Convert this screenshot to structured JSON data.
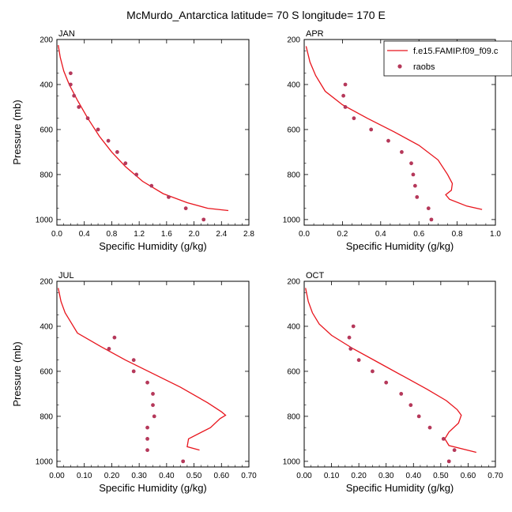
{
  "title": "McMurdo_Antarctica  latitude= 70 S longitude= 170 E",
  "legend": {
    "model_label": "f.e15.FAMIP.f09_f09.c",
    "obs_label": "raobs"
  },
  "colors": {
    "model": "#e8141c",
    "obs": "#b5385a"
  },
  "chart_data": [
    {
      "type": "line",
      "panel": "JAN",
      "xlabel": "Specific Humidity (g/kg)",
      "ylabel": "Pressure (mb)",
      "xlim": [
        0,
        2.8
      ],
      "ylim": [
        1025,
        200
      ],
      "xticks": [
        0.0,
        0.4,
        0.8,
        1.2,
        1.6,
        2.0,
        2.4,
        2.8
      ],
      "xtick_labels": [
        "0.0",
        "0.4",
        "0.8",
        "1.2",
        "1.6",
        "2.0",
        "2.4",
        "2.8"
      ],
      "yticks": [
        200,
        400,
        600,
        800,
        1000
      ],
      "ytick_labels": [
        "200",
        "400",
        "600",
        "800",
        "1000"
      ],
      "model": {
        "x": [
          0.02,
          0.05,
          0.1,
          0.18,
          0.3,
          0.45,
          0.62,
          0.8,
          1.0,
          1.25,
          1.55,
          1.9,
          2.2,
          2.5
        ],
        "y": [
          225,
          280,
          340,
          400,
          470,
          550,
          630,
          700,
          765,
          830,
          885,
          925,
          950,
          960
        ]
      },
      "obs": {
        "x": [
          0.2,
          0.2,
          0.25,
          0.32,
          0.45,
          0.6,
          0.75,
          0.88,
          1.0,
          1.16,
          1.38,
          1.63,
          1.88,
          2.14
        ],
        "y": [
          350,
          400,
          450,
          500,
          550,
          600,
          650,
          700,
          750,
          800,
          850,
          900,
          950,
          1000
        ]
      }
    },
    {
      "type": "line",
      "panel": "APR",
      "xlabel": "Specific Humidity (g/kg)",
      "ylabel": "",
      "xlim": [
        0,
        1.0
      ],
      "ylim": [
        1025,
        200
      ],
      "xticks": [
        0.0,
        0.2,
        0.4,
        0.6,
        0.8,
        1.0
      ],
      "xtick_labels": [
        "0.0",
        "0.2",
        "0.4",
        "0.6",
        "0.8",
        "1.0"
      ],
      "yticks": [
        200,
        400,
        600,
        800,
        1000
      ],
      "ytick_labels": [
        "200",
        "400",
        "600",
        "800",
        "1000"
      ],
      "model": {
        "x": [
          0.01,
          0.03,
          0.06,
          0.11,
          0.2,
          0.33,
          0.47,
          0.6,
          0.7,
          0.75,
          0.775,
          0.77,
          0.74,
          0.76,
          0.85,
          0.93
        ],
        "y": [
          230,
          300,
          360,
          430,
          490,
          550,
          610,
          670,
          735,
          800,
          840,
          870,
          890,
          910,
          940,
          955
        ]
      },
      "obs": {
        "x": [
          0.215,
          0.205,
          0.215,
          0.26,
          0.35,
          0.44,
          0.51,
          0.56,
          0.57,
          0.58,
          0.59,
          0.65,
          0.665
        ],
        "y": [
          400,
          450,
          500,
          550,
          600,
          650,
          700,
          750,
          800,
          850,
          900,
          950,
          1000
        ]
      }
    },
    {
      "type": "line",
      "panel": "JUL",
      "xlabel": "Specific Humidity (g/kg)",
      "ylabel": "Pressure (mb)",
      "xlim": [
        0,
        0.7
      ],
      "ylim": [
        1025,
        200
      ],
      "xticks": [
        0.0,
        0.1,
        0.2,
        0.3,
        0.4,
        0.5,
        0.6,
        0.7
      ],
      "xtick_labels": [
        "0.00",
        "0.10",
        "0.20",
        "0.30",
        "0.40",
        "0.50",
        "0.60",
        "0.70"
      ],
      "yticks": [
        200,
        400,
        600,
        800,
        1000
      ],
      "ytick_labels": [
        "200",
        "400",
        "600",
        "800",
        "1000"
      ],
      "model": {
        "x": [
          0.005,
          0.015,
          0.03,
          0.05,
          0.075,
          0.16,
          0.25,
          0.35,
          0.45,
          0.55,
          0.6,
          0.615,
          0.595,
          0.56,
          0.48,
          0.475,
          0.52
        ],
        "y": [
          230,
          290,
          340,
          380,
          430,
          490,
          550,
          610,
          670,
          740,
          780,
          795,
          810,
          850,
          900,
          935,
          950
        ]
      },
      "obs": {
        "x": [
          0.21,
          0.19,
          0.28,
          0.28,
          0.33,
          0.35,
          0.35,
          0.355,
          0.33,
          0.33,
          0.33,
          0.46
        ],
        "y": [
          450,
          500,
          550,
          600,
          650,
          700,
          750,
          800,
          850,
          900,
          950,
          1000
        ]
      }
    },
    {
      "type": "line",
      "panel": "OCT",
      "xlabel": "Specific Humidity (g/kg)",
      "ylabel": "",
      "xlim": [
        0,
        0.7
      ],
      "ylim": [
        1025,
        200
      ],
      "xticks": [
        0.0,
        0.1,
        0.2,
        0.3,
        0.4,
        0.5,
        0.6,
        0.7
      ],
      "xtick_labels": [
        "0.00",
        "0.10",
        "0.20",
        "0.30",
        "0.40",
        "0.50",
        "0.60",
        "0.70"
      ],
      "yticks": [
        200,
        400,
        600,
        800,
        1000
      ],
      "ytick_labels": [
        "200",
        "400",
        "600",
        "800",
        "1000"
      ],
      "model": {
        "x": [
          0.005,
          0.015,
          0.03,
          0.055,
          0.1,
          0.18,
          0.27,
          0.36,
          0.45,
          0.52,
          0.56,
          0.575,
          0.565,
          0.53,
          0.515,
          0.53,
          0.63
        ],
        "y": [
          230,
          290,
          340,
          390,
          440,
          500,
          560,
          620,
          680,
          730,
          770,
          795,
          830,
          870,
          900,
          930,
          960
        ]
      },
      "obs": {
        "x": [
          0.18,
          0.165,
          0.17,
          0.2,
          0.25,
          0.3,
          0.355,
          0.39,
          0.42,
          0.46,
          0.51,
          0.55,
          0.53
        ],
        "y": [
          400,
          450,
          500,
          550,
          600,
          650,
          700,
          750,
          800,
          850,
          900,
          950,
          1000
        ]
      }
    }
  ]
}
